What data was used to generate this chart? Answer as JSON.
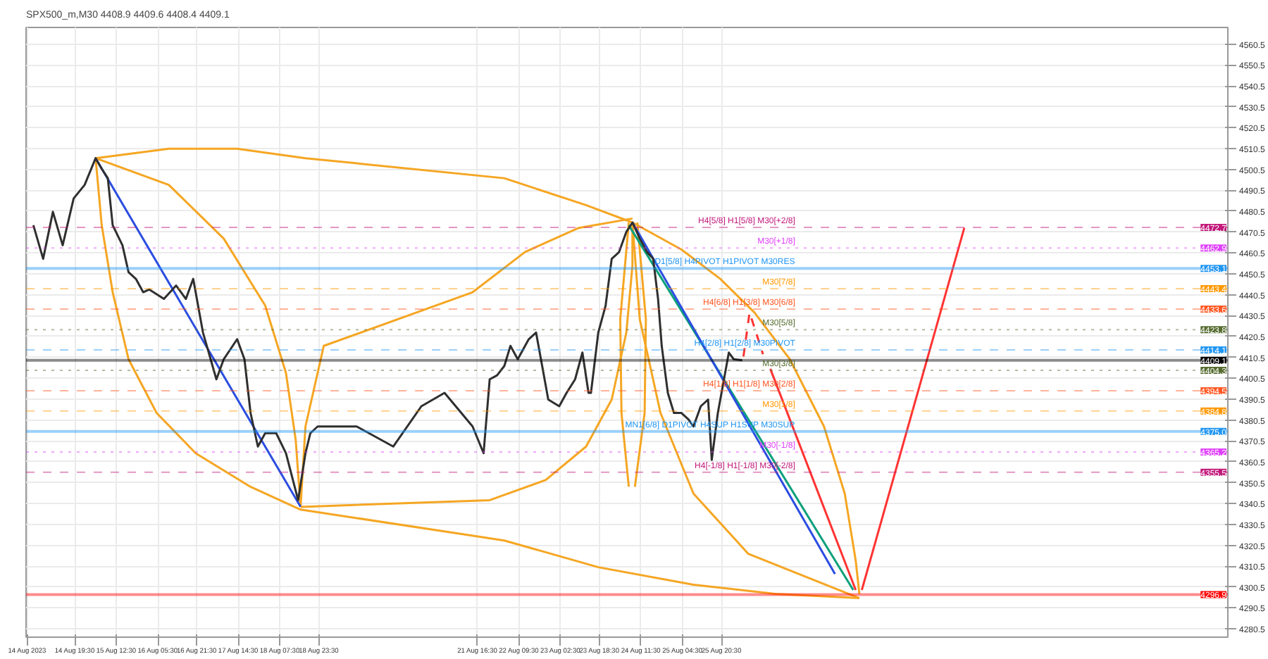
{
  "chart_data": {
    "type": "line",
    "title": "SPX500_m,M30  4408.9 4409.6 4408.4 4409.1",
    "xlim": [
      "2023-08-13T23:30",
      "2023-09-03T12:00"
    ],
    "ylim": [
      4276.5,
      4568.5
    ],
    "xticks": [
      {
        "value": "2023-08-14T00:00",
        "label": "14 Aug 2023"
      },
      {
        "value": "2023-08-14T19:30",
        "label": "14 Aug 19:30"
      },
      {
        "value": "2023-08-15T12:30",
        "label": "15 Aug 12:30"
      },
      {
        "value": "2023-08-16T05:30",
        "label": "16 Aug 05:30"
      },
      {
        "value": "2023-08-16T21:30",
        "label": "16 Aug 21:30"
      },
      {
        "value": "2023-08-17T14:30",
        "label": "17 Aug 14:30"
      },
      {
        "value": "2023-08-18T07:30",
        "label": "18 Aug 07:30"
      },
      {
        "value": "2023-08-18T23:30",
        "label": "18 Aug 23:30"
      },
      {
        "value": "2023-08-21T16:30",
        "label": "21 Aug 16:30"
      },
      {
        "value": "2023-08-22T09:30",
        "label": "22 Aug 09:30"
      },
      {
        "value": "2023-08-23T02:30",
        "label": "23 Aug 02:30"
      },
      {
        "value": "2023-08-23T18:30",
        "label": "23 Aug 18:30"
      },
      {
        "value": "2023-08-24T11:30",
        "label": "24 Aug 11:30"
      },
      {
        "value": "2023-08-25T04:30",
        "label": "25 Aug 04:30"
      },
      {
        "value": "2023-08-25T20:30",
        "label": "25 Aug 20:30"
      }
    ],
    "yticks": [
      4280.5,
      4290.5,
      4300.5,
      4310.5,
      4320.5,
      4330.5,
      4340.5,
      4350.5,
      4360.5,
      4370.5,
      4380.5,
      4390.5,
      4400.5,
      4410.5,
      4420.5,
      4430.5,
      4440.5,
      4450.5,
      4460.5,
      4470.5,
      4480.5,
      4490.5,
      4500.5,
      4510.5,
      4520.5,
      4530.5,
      4540.5,
      4550.5,
      4560.5
    ],
    "grid": true,
    "series": [
      {
        "color": "#2f2f2f",
        "x": [
          "2023-08-14T02:30",
          "2023-08-14T06:30",
          "2023-08-14T10:30",
          "2023-08-14T14:30",
          "2023-08-14T19:00",
          "2023-08-14T23:30",
          "2023-08-15T04:00",
          "2023-08-15T06:30",
          "2023-08-15T09:00",
          "2023-08-15T11:00",
          "2023-08-15T15:00",
          "2023-08-15T17:30",
          "2023-08-15T20:30",
          "2023-08-15T23:30",
          "2023-08-16T02:00",
          "2023-08-16T08:00",
          "2023-08-16T13:00",
          "2023-08-16T17:00",
          "2023-08-16T20:00",
          "2023-08-17T00:00",
          "2023-08-17T05:30",
          "2023-08-17T08:30",
          "2023-08-17T14:00",
          "2023-08-17T17:00",
          "2023-08-17T19:30",
          "2023-08-17T22:30",
          "2023-08-18T01:30",
          "2023-08-18T06:00",
          "2023-08-18T10:00",
          "2023-08-18T15:00",
          "2023-08-18T18:00",
          "2023-08-18T20:00",
          "2023-08-18T23:00",
          "2023-08-19T15:00",
          "2023-08-20T06:00",
          "2023-08-20T17:30",
          "2023-08-21T03:00",
          "2023-08-21T14:30",
          "2023-08-21T19:00",
          "2023-08-21T21:30",
          "2023-08-22T00:30",
          "2023-08-22T03:30",
          "2023-08-22T06:00",
          "2023-08-22T09:00",
          "2023-08-22T13:30",
          "2023-08-22T16:30",
          "2023-08-22T19:00",
          "2023-08-22T21:30",
          "2023-08-23T02:00",
          "2023-08-23T05:00",
          "2023-08-23T08:30",
          "2023-08-23T11:30",
          "2023-08-23T14:00",
          "2023-08-23T15:00",
          "2023-08-23T18:00",
          "2023-08-23T21:00",
          "2023-08-23T23:30",
          "2023-08-24T02:30",
          "2023-08-24T05:30",
          "2023-08-24T08:00",
          "2023-08-24T11:00",
          "2023-08-24T14:00",
          "2023-08-24T16:30",
          "2023-08-24T18:30",
          "2023-08-24T20:00",
          "2023-08-24T22:30",
          "2023-08-25T01:00",
          "2023-08-25T04:00",
          "2023-08-25T07:00",
          "2023-08-25T09:00",
          "2023-08-25T12:00",
          "2023-08-25T15:00",
          "2023-08-25T16:30",
          "2023-08-25T19:00",
          "2023-08-25T21:00",
          "2023-08-25T23:30",
          "2023-08-26T01:30",
          "2023-08-26T05:00"
        ],
        "values": [
          4473.8,
          4457.7,
          4480.2,
          4464.2,
          4486.6,
          4493.1,
          4505.9,
          4500.8,
          4496.3,
          4473.8,
          4464.2,
          4451.3,
          4448.1,
          4441.7,
          4443.0,
          4438.5,
          4444.9,
          4438.5,
          4448.1,
          4422.4,
          4400.0,
          4409.6,
          4419.2,
          4409.6,
          4383.9,
          4367.8,
          4374.2,
          4374.2,
          4364.6,
          4342.1,
          4364.6,
          4374.2,
          4377.4,
          4377.4,
          4367.8,
          4387.1,
          4393.5,
          4377.4,
          4364.6,
          4400.0,
          4401.9,
          4406.4,
          4416.0,
          4409.6,
          4419.2,
          4422.4,
          4406.4,
          4390.3,
          4387.1,
          4393.5,
          4400.0,
          4412.8,
          4393.5,
          4393.5,
          4422.4,
          4435.3,
          4457.7,
          4460.9,
          4470.6,
          4475.1,
          4467.4,
          4460.9,
          4457.7,
          4438.5,
          4416.0,
          4393.5,
          4383.9,
          4383.9,
          4380.7,
          4377.4,
          4387.1,
          4390.3,
          4361.4,
          4383.9,
          4396.7,
          4412.8,
          4409.6,
          4409.1
        ]
      },
      {
        "color": "#2b4de0",
        "x": [
          "2023-08-15T04:00",
          "2023-08-18T16:00"
        ],
        "values": [
          4505.9,
          4339.0
        ]
      },
      {
        "color": "#2b4de0",
        "x": [
          "2023-08-24T08:00",
          "2023-08-27T19:00"
        ],
        "values": [
          4475.1,
          4306.8
        ]
      },
      {
        "color": "#0aa07a",
        "x": [
          "2023-08-24T06:30",
          "2023-08-28T02:30"
        ],
        "values": [
          4473.8,
          4299.1
        ]
      },
      {
        "color": "#ff3333",
        "line_style": "dashed",
        "x": [
          "2023-08-26T05:30",
          "2023-08-26T08:00",
          "2023-08-26T13:30"
        ],
        "values": [
          4410.9,
          4432.0,
          4412.0
        ]
      },
      {
        "color": "#ff3333",
        "x": [
          "2023-08-26T16:30",
          "2023-08-28T03:30"
        ],
        "values": [
          4405.0,
          4299.1
        ]
      },
      {
        "color": "#ff3333",
        "x": [
          "2023-08-28T06:00",
          "2023-08-30T00:00"
        ],
        "values": [
          4299.1,
          4472.5
        ]
      },
      {
        "color": "#f5a623",
        "x": [
          "2023-08-15T04:00",
          "2023-08-16T10:00",
          "2023-08-17T14:00",
          "2023-08-18T18:00",
          "2023-08-22T03:30",
          "2023-08-23T13:00",
          "2023-08-24T08:00",
          "2023-08-25T04:00",
          "2023-08-25T20:00",
          "2023-08-26T10:00",
          "2023-08-27T00:30",
          "2023-08-27T14:30",
          "2023-08-27T23:00",
          "2023-08-28T03:30",
          "2023-08-28T05:00"
        ],
        "values": [
          4505.9,
          4510.4,
          4510.4,
          4505.9,
          4496.3,
          4483.4,
          4475.1,
          4462.2,
          4448.1,
          4432.0,
          4409.6,
          4377.4,
          4345.3,
          4313.2,
          4297.2
        ]
      },
      {
        "color": "#f5a623",
        "x": [
          "2023-08-15T04:00",
          "2023-08-15T06:30",
          "2023-08-15T11:00",
          "2023-08-15T17:30",
          "2023-08-16T05:00",
          "2023-08-16T21:00",
          "2023-08-17T19:30",
          "2023-08-18T16:00",
          "2023-08-22T03:30",
          "2023-08-23T18:00",
          "2023-08-25T09:00",
          "2023-08-26T18:30",
          "2023-08-28T05:00"
        ],
        "values": [
          4505.9,
          4473.8,
          4441.7,
          4409.6,
          4383.9,
          4364.6,
          4348.5,
          4337.6,
          4322.8,
          4310.0,
          4301.6,
          4297.2,
          4295.2
        ]
      },
      {
        "color": "#f5a623",
        "x": [
          "2023-08-15T04:00",
          "2023-08-16T10:00",
          "2023-08-17T08:30",
          "2023-08-18T01:30",
          "2023-08-18T10:00",
          "2023-08-18T14:00",
          "2023-08-18T16:00"
        ],
        "values": [
          4505.9,
          4493.1,
          4467.4,
          4435.3,
          4403.1,
          4371.0,
          4338.9
        ]
      },
      {
        "color": "#f5a623",
        "x": [
          "2023-08-18T16:00",
          "2023-08-18T18:00",
          "2023-08-19T01:30",
          "2023-08-21T14:30",
          "2023-08-22T12:00",
          "2023-08-23T10:00",
          "2023-08-24T08:00"
        ],
        "values": [
          4338.9,
          4377.4,
          4416.0,
          4441.7,
          4461.0,
          4472.5,
          4477.0
        ]
      },
      {
        "color": "#f5a623",
        "x": [
          "2023-08-18T16:00",
          "2023-08-21T21:30",
          "2023-08-22T20:30",
          "2023-08-23T13:00",
          "2023-08-23T23:30",
          "2023-08-24T05:30",
          "2023-08-24T08:00",
          "2023-08-24T08:00"
        ],
        "values": [
          4338.9,
          4342.1,
          4351.8,
          4367.8,
          4390.3,
          4422.4,
          4454.5,
          4475.1
        ]
      },
      {
        "color": "#f5a623",
        "x": [
          "2023-08-24T08:00",
          "2023-08-24T11:00",
          "2023-08-24T19:30",
          "2023-08-25T09:00",
          "2023-08-26T07:30",
          "2023-08-28T05:00"
        ],
        "values": [
          4475.1,
          4428.8,
          4383.9,
          4345.3,
          4316.4,
          4295.2
        ]
      },
      {
        "color": "#f5a623",
        "x": [
          "2023-08-24T06:30",
          "2023-08-24T03:00",
          "2023-08-24T03:30",
          "2023-08-24T06:30"
        ],
        "values": [
          4475.1,
          4428.8,
          4383.9,
          4348.5
        ]
      },
      {
        "color": "#f5a623",
        "x": [
          "2023-08-24T10:00",
          "2023-08-24T13:30",
          "2023-08-24T13:00",
          "2023-08-24T09:00"
        ],
        "values": [
          4475.1,
          4428.8,
          4383.9,
          4348.5
        ]
      }
    ],
    "ref_lines": [
      {
        "axis": "y",
        "value": 4472.7,
        "label": "H4[5/8] H1[5/8] M30[+2/8]",
        "color": "#c2187a",
        "line_style": "dashed"
      },
      {
        "axis": "y",
        "value": 4462.9,
        "label": "M30[+1/8]",
        "color": "#e040fb",
        "line_style": "dotted"
      },
      {
        "axis": "y",
        "value": 4453.1,
        "label": "D1[5/8] H4PIVOT H1PIVOT M30RES",
        "color": "#2196f3",
        "line_style": "solid"
      },
      {
        "axis": "y",
        "value": 4443.4,
        "label": "M30[7/8]",
        "color": "#ff9800",
        "line_style": "dashed"
      },
      {
        "axis": "y",
        "value": 4433.6,
        "label": "H4[6/8] H1[3/8] M30[6/8]",
        "color": "#ff5722",
        "line_style": "dashed"
      },
      {
        "axis": "y",
        "value": 4423.8,
        "label": "M30[5/8]",
        "color": "#556b2f",
        "line_style": "dotted"
      },
      {
        "axis": "y",
        "value": 4414.1,
        "label": "H4[2/8] H1[2/8] M30PIVOT",
        "color": "#2196f3",
        "line_style": "dashed"
      },
      {
        "axis": "y",
        "value": 4409.1,
        "label": null,
        "color": "#000000",
        "line_style": "solid"
      },
      {
        "axis": "y",
        "value": 4404.3,
        "label": "M30[3/8]",
        "color": "#556b2f",
        "line_style": "dotted"
      },
      {
        "axis": "y",
        "value": 4394.5,
        "label": "H4[1/8] H1[1/8] M30[2/8]",
        "color": "#ff5722",
        "line_style": "dashed"
      },
      {
        "axis": "y",
        "value": 4384.8,
        "label": "M30[1/8]",
        "color": "#ff9800",
        "line_style": "dashed"
      },
      {
        "axis": "y",
        "value": 4375.0,
        "label": "MN1[6/8] D1PIVOT H4SUP H1SUP M30SUP",
        "color": "#2196f3",
        "line_style": "solid"
      },
      {
        "axis": "y",
        "value": 4365.2,
        "label": "M30[-1/8]",
        "color": "#e040fb",
        "line_style": "dotted"
      },
      {
        "axis": "y",
        "value": 4355.5,
        "label": "H4[-1/8] H1[-1/8] M30[-2/8]",
        "color": "#c2187a",
        "line_style": "dashed"
      },
      {
        "axis": "y",
        "value": 4296.9,
        "label": null,
        "color": "#ff0000",
        "line_style": "solid"
      }
    ],
    "annotations": [
      {
        "text": "4472.7",
        "x": "2023-09-03T12:00",
        "y": 4472.7
      },
      {
        "text": "4462.9",
        "x": "2023-09-03T12:00",
        "y": 4462.9
      },
      {
        "text": "4453.1",
        "x": "2023-09-03T12:00",
        "y": 4453.1
      },
      {
        "text": "4443.4",
        "x": "2023-09-03T12:00",
        "y": 4443.4
      },
      {
        "text": "4433.6",
        "x": "2023-09-03T12:00",
        "y": 4433.6
      },
      {
        "text": "4423.8",
        "x": "2023-09-03T12:00",
        "y": 4423.8
      },
      {
        "text": "4414.1",
        "x": "2023-09-03T12:00",
        "y": 4414.1
      },
      {
        "text": "4409.1",
        "x": "2023-09-03T12:00",
        "y": 4409.1
      },
      {
        "text": "4404.3",
        "x": "2023-09-03T12:00",
        "y": 4404.3
      },
      {
        "text": "4394.5",
        "x": "2023-09-03T12:00",
        "y": 4394.5
      },
      {
        "text": "4384.8",
        "x": "2023-09-03T12:00",
        "y": 4384.8
      },
      {
        "text": "4375.0",
        "x": "2023-09-03T12:00",
        "y": 4375.0
      },
      {
        "text": "4365.2",
        "x": "2023-09-03T12:00",
        "y": 4365.2
      },
      {
        "text": "4355.5",
        "x": "2023-09-03T12:00",
        "y": 4355.5
      },
      {
        "text": "4296.9",
        "x": "2023-09-03T12:00",
        "y": 4296.9
      }
    ]
  }
}
